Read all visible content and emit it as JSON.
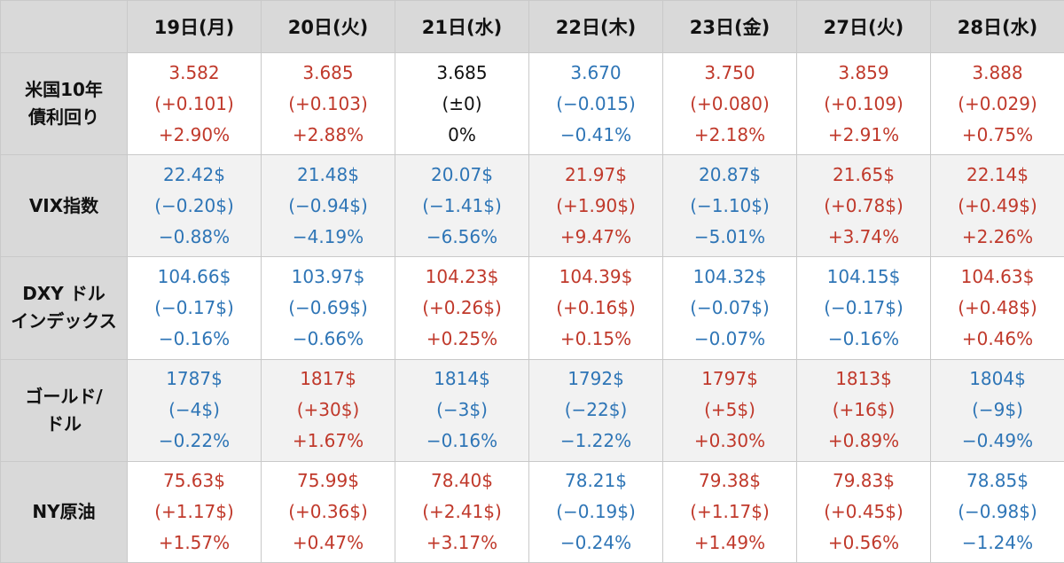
{
  "colors": {
    "up": "#c0392b",
    "down": "#2e75b6",
    "flat": "#111111",
    "header_bg": "#d9d9d9"
  },
  "header": {
    "corner": "",
    "days": [
      "19日(月)",
      "20日(火)",
      "21日(水)",
      "22日(木)",
      "23日(金)",
      "27日(火)",
      "28日(水)"
    ]
  },
  "rows": [
    {
      "label_lines": [
        "米国10年",
        "債利回り"
      ],
      "cells": [
        {
          "value": "3.582",
          "change": "(+0.101)",
          "pct": "+2.90%",
          "dir": "up"
        },
        {
          "value": "3.685",
          "change": "(+0.103)",
          "pct": "+2.88%",
          "dir": "up"
        },
        {
          "value": "3.685",
          "change": "(±0)",
          "pct": "0%",
          "dir": "flat"
        },
        {
          "value": "3.670",
          "change": "(−0.015)",
          "pct": "−0.41%",
          "dir": "down"
        },
        {
          "value": "3.750",
          "change": "(+0.080)",
          "pct": "+2.18%",
          "dir": "up"
        },
        {
          "value": "3.859",
          "change": "(+0.109)",
          "pct": "+2.91%",
          "dir": "up"
        },
        {
          "value": "3.888",
          "change": "(+0.029)",
          "pct": "+0.75%",
          "dir": "up"
        }
      ]
    },
    {
      "label_lines": [
        "VIX指数"
      ],
      "cells": [
        {
          "value": "22.42$",
          "change": "(−0.20$)",
          "pct": "−0.88%",
          "dir": "down"
        },
        {
          "value": "21.48$",
          "change": "(−0.94$)",
          "pct": "−4.19%",
          "dir": "down"
        },
        {
          "value": "20.07$",
          "change": "(−1.41$)",
          "pct": "−6.56%",
          "dir": "down"
        },
        {
          "value": "21.97$",
          "change": "(+1.90$)",
          "pct": "+9.47%",
          "dir": "up"
        },
        {
          "value": "20.87$",
          "change": "(−1.10$)",
          "pct": "−5.01%",
          "dir": "down"
        },
        {
          "value": "21.65$",
          "change": "(+0.78$)",
          "pct": "+3.74%",
          "dir": "up"
        },
        {
          "value": "22.14$",
          "change": "(+0.49$)",
          "pct": "+2.26%",
          "dir": "up"
        }
      ]
    },
    {
      "label_lines": [
        "DXY ドル",
        "インデックス"
      ],
      "cells": [
        {
          "value": "104.66$",
          "change": "(−0.17$)",
          "pct": "−0.16%",
          "dir": "down"
        },
        {
          "value": "103.97$",
          "change": "(−0.69$)",
          "pct": "−0.66%",
          "dir": "down"
        },
        {
          "value": "104.23$",
          "change": "(+0.26$)",
          "pct": "+0.25%",
          "dir": "up"
        },
        {
          "value": "104.39$",
          "change": "(+0.16$)",
          "pct": "+0.15%",
          "dir": "up"
        },
        {
          "value": "104.32$",
          "change": "(−0.07$)",
          "pct": "−0.07%",
          "dir": "down"
        },
        {
          "value": "104.15$",
          "change": "(−0.17$)",
          "pct": "−0.16%",
          "dir": "down"
        },
        {
          "value": "104.63$",
          "change": "(+0.48$)",
          "pct": "+0.46%",
          "dir": "up"
        }
      ]
    },
    {
      "label_lines": [
        "ゴールド/",
        "ドル"
      ],
      "cells": [
        {
          "value": "1787$",
          "change": "(−4$)",
          "pct": "−0.22%",
          "dir": "down"
        },
        {
          "value": "1817$",
          "change": "(+30$)",
          "pct": "+1.67%",
          "dir": "up"
        },
        {
          "value": "1814$",
          "change": "(−3$)",
          "pct": "−0.16%",
          "dir": "down"
        },
        {
          "value": "1792$",
          "change": "(−22$)",
          "pct": "−1.22%",
          "dir": "down"
        },
        {
          "value": "1797$",
          "change": "(+5$)",
          "pct": "+0.30%",
          "dir": "up"
        },
        {
          "value": "1813$",
          "change": "(+16$)",
          "pct": "+0.89%",
          "dir": "up"
        },
        {
          "value": "1804$",
          "change": "(−9$)",
          "pct": "−0.49%",
          "dir": "down"
        }
      ]
    },
    {
      "label_lines": [
        "NY原油"
      ],
      "cells": [
        {
          "value": "75.63$",
          "change": "(+1.17$)",
          "pct": "+1.57%",
          "dir": "up"
        },
        {
          "value": "75.99$",
          "change": "(+0.36$)",
          "pct": "+0.47%",
          "dir": "up"
        },
        {
          "value": "78.40$",
          "change": "(+2.41$)",
          "pct": "+3.17%",
          "dir": "up"
        },
        {
          "value": "78.21$",
          "change": "(−0.19$)",
          "pct": "−0.24%",
          "dir": "down"
        },
        {
          "value": "79.38$",
          "change": "(+1.17$)",
          "pct": "+1.49%",
          "dir": "up"
        },
        {
          "value": "79.83$",
          "change": "(+0.45$)",
          "pct": "+0.56%",
          "dir": "up"
        },
        {
          "value": "78.85$",
          "change": "(−0.98$)",
          "pct": "−1.24%",
          "dir": "down"
        }
      ]
    }
  ]
}
